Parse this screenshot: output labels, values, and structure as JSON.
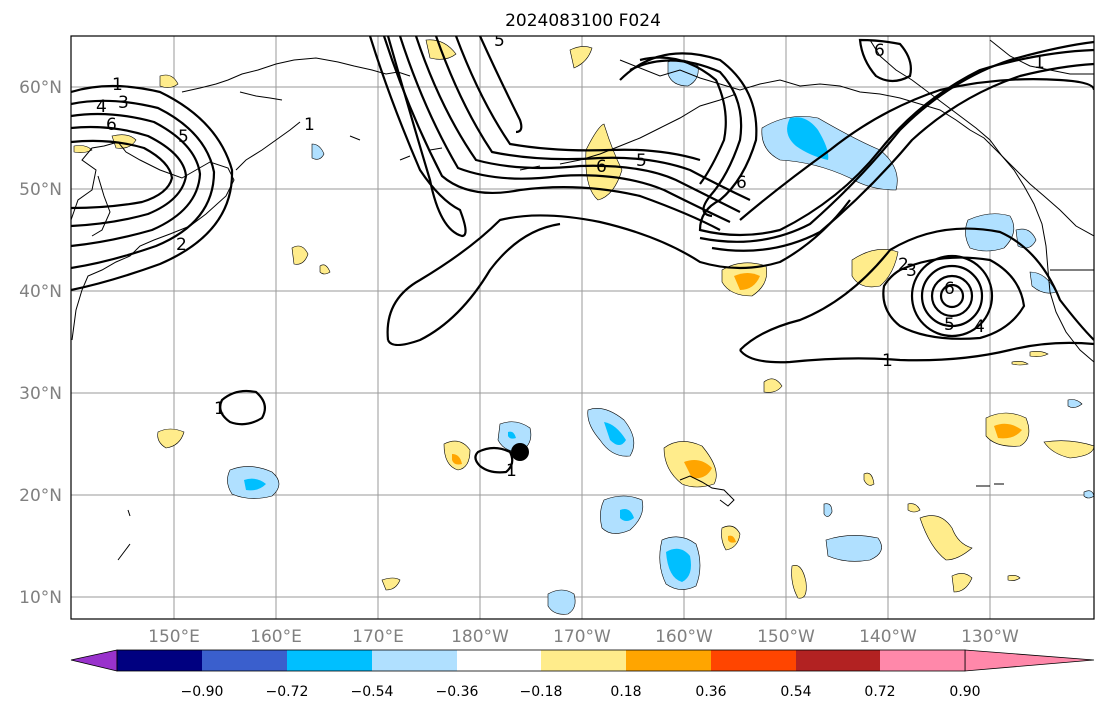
{
  "title": "2024083100 F024",
  "lat_labels": [
    "60°N",
    "50°N",
    "40°N",
    "30°N",
    "20°N",
    "10°N"
  ],
  "lon_labels": [
    "150°E",
    "160°E",
    "170°E",
    "180°W",
    "170°W",
    "160°W",
    "150°W",
    "140°W",
    "130°W"
  ],
  "contour_labels": [
    "1",
    "4",
    "3",
    "6",
    "5",
    "2",
    "5",
    "6",
    "5",
    "6",
    "1",
    "6",
    "3",
    "2",
    "6",
    "5",
    "4",
    "1",
    "1",
    "1",
    "1"
  ],
  "colorbar": {
    "ticks": [
      "−0.90",
      "−0.72",
      "−0.54",
      "−0.36",
      "−0.18",
      "0.18",
      "0.36",
      "0.54",
      "0.72",
      "0.90"
    ],
    "colors": [
      "#9932CC",
      "#000080",
      "#3a5fcd",
      "#00bfff",
      "#b0e0ff",
      "#ffffff",
      "#ffec8b",
      "#ffa500",
      "#ff4500",
      "#b22222",
      "#ff88aa"
    ]
  },
  "colors": {
    "light_blue": "#b0e0ff",
    "blue": "#00bfff",
    "yellow": "#ffec8b",
    "orange": "#ffa500"
  },
  "marker": "storm-position-dot"
}
